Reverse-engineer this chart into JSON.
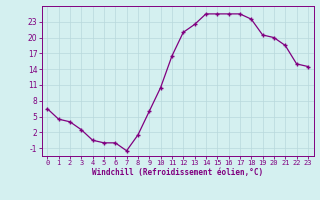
{
  "x": [
    0,
    1,
    2,
    3,
    4,
    5,
    6,
    7,
    8,
    9,
    10,
    11,
    12,
    13,
    14,
    15,
    16,
    17,
    18,
    19,
    20,
    21,
    22,
    23
  ],
  "y": [
    6.5,
    4.5,
    4.0,
    2.5,
    0.5,
    0.0,
    0.0,
    -1.5,
    1.5,
    6.0,
    10.5,
    16.5,
    21.0,
    22.5,
    24.5,
    24.5,
    24.5,
    24.5,
    23.5,
    20.5,
    20.0,
    18.5,
    15.0,
    14.5
  ],
  "line_color": "#800080",
  "marker": "+",
  "marker_color": "#800080",
  "bg_color": "#d4f0f0",
  "grid_color": "#b8d8dc",
  "xlabel": "Windchill (Refroidissement éolien,°C)",
  "xlabel_color": "#800080",
  "tick_color": "#800080",
  "yticks": [
    -1,
    2,
    5,
    8,
    11,
    14,
    17,
    20,
    23
  ],
  "xticks": [
    0,
    1,
    2,
    3,
    4,
    5,
    6,
    7,
    8,
    9,
    10,
    11,
    12,
    13,
    14,
    15,
    16,
    17,
    18,
    19,
    20,
    21,
    22,
    23
  ],
  "ylim": [
    -2.5,
    26.0
  ],
  "xlim": [
    -0.5,
    23.5
  ],
  "tick_fontsize": 5.0,
  "xlabel_fontsize": 5.5,
  "linewidth": 0.9,
  "markersize": 3.5
}
